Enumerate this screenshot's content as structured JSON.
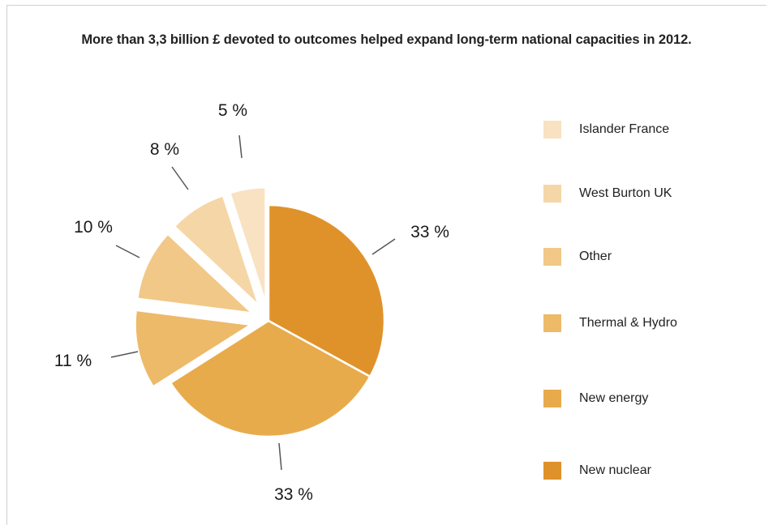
{
  "chart_data": {
    "type": "pie",
    "title": "More than 3,3 billion £ devoted to outcomes helped expand long-term national capacities in 2012.",
    "slices": [
      {
        "name": "New nuclear",
        "value": 33,
        "label": "33 %",
        "color": "#E0922A",
        "exploded": false
      },
      {
        "name": "New energy",
        "value": 33,
        "label": "33 %",
        "color": "#E8AB4C",
        "exploded": false
      },
      {
        "name": "Thermal & Hydro",
        "value": 11,
        "label": "11 %",
        "color": "#EDBA6A",
        "exploded": true
      },
      {
        "name": "Other",
        "value": 10,
        "label": "10 %",
        "color": "#F1C887",
        "exploded": true
      },
      {
        "name": "West Burton UK",
        "value": 8,
        "label": "8 %",
        "color": "#F5D6A6",
        "exploded": true
      },
      {
        "name": "Islander France",
        "value": 5,
        "label": "5 %",
        "color": "#F8E2C2",
        "exploded": true
      }
    ],
    "legend_order": [
      "Islander France",
      "West Burton UK",
      "Other",
      "Thermal & Hydro",
      "New energy",
      "New nuclear"
    ],
    "legend_placement": "right"
  }
}
